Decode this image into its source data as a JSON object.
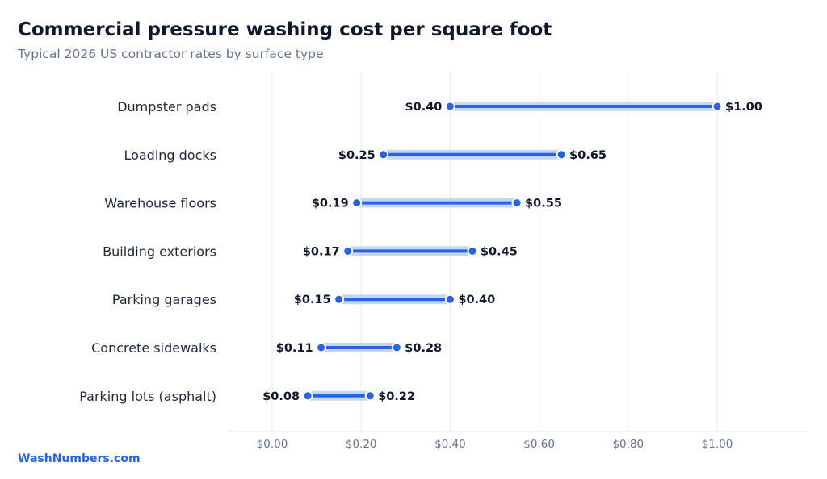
{
  "header": {
    "title": "Commercial pressure washing cost per square foot",
    "subtitle": "Typical 2026 US contractor rates by surface type"
  },
  "footer": {
    "source": "WashNumbers.com"
  },
  "colors": {
    "accent": "#2563eb",
    "band": "#c7d7f2",
    "label": "#1e293b",
    "value": "#0f172a",
    "tick": "#64748b",
    "grid": "#e5e7eb"
  },
  "chart_data": {
    "type": "range-dumbbell",
    "title": "Commercial pressure washing cost per square foot",
    "subtitle": "Typical 2026 US contractor rates by surface type",
    "xlabel": "",
    "ylabel": "",
    "xlim": [
      -0.1,
      1.2
    ],
    "x_ticks": [
      0,
      0.2,
      0.4,
      0.6,
      0.8,
      1.0
    ],
    "x_tick_labels": [
      "$0.00",
      "$0.20",
      "$0.40",
      "$0.60",
      "$0.80",
      "$1.00"
    ],
    "grid": "vertical",
    "categories": [
      "Dumpster pads",
      "Loading docks",
      "Warehouse floors",
      "Building exteriors",
      "Parking garages",
      "Concrete sidewalks",
      "Parking lots (asphalt)"
    ],
    "low": [
      0.4,
      0.25,
      0.19,
      0.17,
      0.15,
      0.11,
      0.08
    ],
    "high": [
      1.0,
      0.65,
      0.55,
      0.45,
      0.4,
      0.28,
      0.22
    ],
    "low_labels": [
      "$0.40",
      "$0.25",
      "$0.19",
      "$0.17",
      "$0.15",
      "$0.11",
      "$0.08"
    ],
    "high_labels": [
      "$1.00",
      "$0.65",
      "$0.55",
      "$0.45",
      "$0.40",
      "$0.28",
      "$0.22"
    ]
  }
}
